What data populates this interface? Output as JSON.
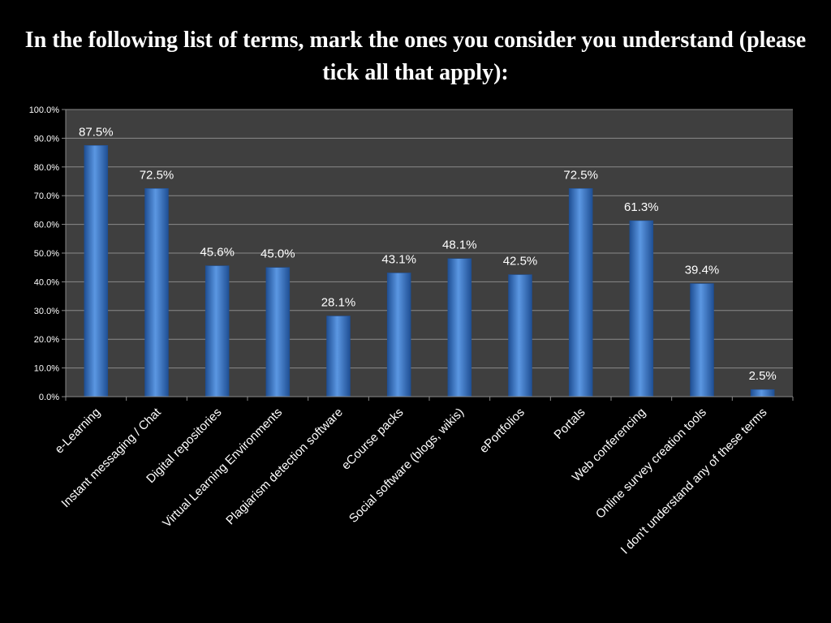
{
  "title": "In the following list of terms, mark the ones you consider you understand (please tick all that apply):",
  "colors": {
    "background": "#000000",
    "plot_background": "#3f3f3f",
    "gridline": "#8a8a8a",
    "bar_light": "#5b97e2",
    "bar_dark": "#1f4f94",
    "text": "#ffffff"
  },
  "chart_data": {
    "type": "bar",
    "categories": [
      "e-Learning",
      "Instant messaging / Chat",
      "Digital repositories",
      "Virtual Learning Environments",
      "Plagiarism detection software",
      "eCourse packs",
      "Social software (blogs, wikis)",
      "ePortfolios",
      "Portals",
      "Web conferencing",
      "Online survey creation tools",
      "I don't understand any of these terms"
    ],
    "values": [
      87.5,
      72.5,
      45.6,
      45.0,
      28.1,
      43.1,
      48.1,
      42.5,
      72.5,
      61.3,
      39.4,
      2.5
    ],
    "data_labels": [
      "87.5%",
      "72.5%",
      "45.6%",
      "45.0%",
      "28.1%",
      "43.1%",
      "48.1%",
      "42.5%",
      "72.5%",
      "61.3%",
      "39.4%",
      "2.5%"
    ],
    "y_ticks": [
      "0.0%",
      "10.0%",
      "20.0%",
      "30.0%",
      "40.0%",
      "50.0%",
      "60.0%",
      "70.0%",
      "80.0%",
      "90.0%",
      "100.0%"
    ],
    "ylim": [
      0,
      100
    ],
    "grid": true,
    "legend": "none",
    "xlabel": "",
    "ylabel": ""
  }
}
